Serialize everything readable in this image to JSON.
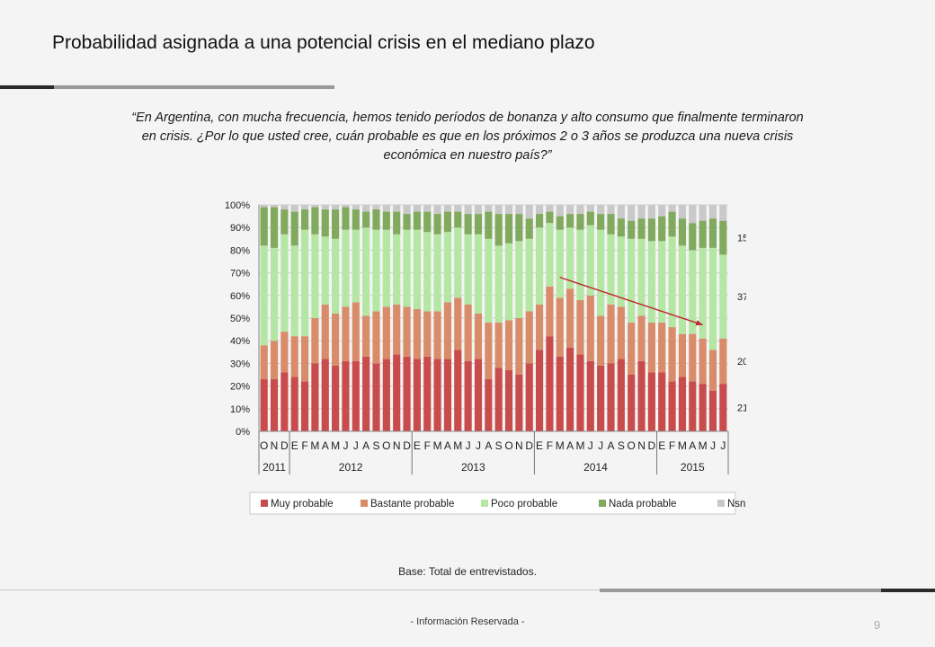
{
  "slide": {
    "title": "Probabilidad asignada a una potencial crisis en el mediano plazo",
    "question": "“En Argentina, con mucha frecuencia, hemos tenido períodos de bonanza y alto consumo que finalmente terminaron en crisis. ¿Por lo que usted cree, cuán probable es que en los próximos 2 o 3 años se produzca una nueva crisis económica en nuestro país?”",
    "base_note": "Base: Total de entrevistados.",
    "footer": "- Información Reservada -",
    "page_number": "9"
  },
  "chart_data": {
    "type": "bar",
    "stacked": true,
    "ylim": [
      0,
      100
    ],
    "y_ticks": [
      "0%",
      "10%",
      "20%",
      "30%",
      "40%",
      "50%",
      "60%",
      "70%",
      "80%",
      "90%",
      "100%"
    ],
    "month_labels": [
      "O",
      "N",
      "D",
      "E",
      "F",
      "M",
      "A",
      "M",
      "J",
      "J",
      "A",
      "S",
      "O",
      "N",
      "D",
      "E",
      "F",
      "M",
      "A",
      "M",
      "J",
      "J",
      "A",
      "S",
      "O",
      "N",
      "D",
      "E",
      "F",
      "M",
      "A",
      "M",
      "J",
      "J",
      "A",
      "S",
      "O",
      "N",
      "D",
      "E",
      "F",
      "M",
      "A",
      "M",
      "J",
      "J"
    ],
    "year_groups": [
      {
        "label": "2011",
        "count": 3
      },
      {
        "label": "2012",
        "count": 12
      },
      {
        "label": "2013",
        "count": 12
      },
      {
        "label": "2014",
        "count": 12
      },
      {
        "label": "2015",
        "count": 7
      }
    ],
    "colors": [
      "#c94c4c",
      "#d98c6a",
      "#b4e6a4",
      "#82aa5e",
      "#c9c9c9"
    ],
    "series": [
      {
        "name": "Muy probable",
        "values": [
          23,
          23,
          26,
          24,
          22,
          30,
          32,
          29,
          31,
          31,
          33,
          30,
          32,
          34,
          33,
          32,
          33,
          32,
          32,
          36,
          31,
          32,
          23,
          28,
          27,
          25,
          30,
          36,
          42,
          33,
          37,
          34,
          31,
          29,
          30,
          32,
          25,
          31,
          26,
          26,
          22,
          24,
          22,
          21,
          18,
          21
        ]
      },
      {
        "name": "Bastante probable",
        "values": [
          15,
          17,
          18,
          18,
          20,
          20,
          24,
          23,
          24,
          26,
          18,
          23,
          23,
          22,
          22,
          22,
          20,
          21,
          25,
          23,
          25,
          20,
          25,
          20,
          22,
          25,
          23,
          20,
          22,
          26,
          26,
          24,
          29,
          22,
          26,
          23,
          23,
          20,
          22,
          22,
          24,
          19,
          21,
          20,
          18,
          20
        ]
      },
      {
        "name": "Poco probable",
        "values": [
          44,
          41,
          43,
          40,
          47,
          37,
          30,
          33,
          34,
          32,
          39,
          36,
          34,
          31,
          34,
          35,
          35,
          34,
          31,
          31,
          31,
          35,
          37,
          34,
          34,
          34,
          32,
          34,
          28,
          30,
          27,
          31,
          31,
          38,
          31,
          31,
          37,
          34,
          36,
          36,
          40,
          39,
          37,
          40,
          45,
          37
        ]
      },
      {
        "name": "Nada probable",
        "values": [
          17,
          18,
          11,
          15,
          9,
          12,
          12,
          13,
          10,
          9,
          7,
          9,
          8,
          10,
          7,
          8,
          9,
          9,
          9,
          7,
          9,
          9,
          12,
          14,
          13,
          12,
          9,
          6,
          5,
          6,
          6,
          7,
          6,
          7,
          9,
          8,
          8,
          9,
          10,
          11,
          11,
          12,
          12,
          12,
          13,
          15
        ]
      },
      {
        "name": "Nsnc",
        "values": [
          1,
          1,
          2,
          3,
          2,
          1,
          2,
          2,
          1,
          2,
          3,
          2,
          3,
          3,
          4,
          3,
          3,
          4,
          3,
          3,
          4,
          4,
          3,
          4,
          4,
          4,
          6,
          4,
          3,
          5,
          4,
          4,
          3,
          4,
          4,
          6,
          7,
          6,
          6,
          5,
          3,
          6,
          8,
          7,
          6,
          7
        ]
      }
    ],
    "right_labels": [
      "15",
      "37",
      "20",
      "21"
    ],
    "trend_arrow": {
      "from_index": 29,
      "from_value": 68,
      "to_index": 43,
      "to_value": 47
    }
  }
}
